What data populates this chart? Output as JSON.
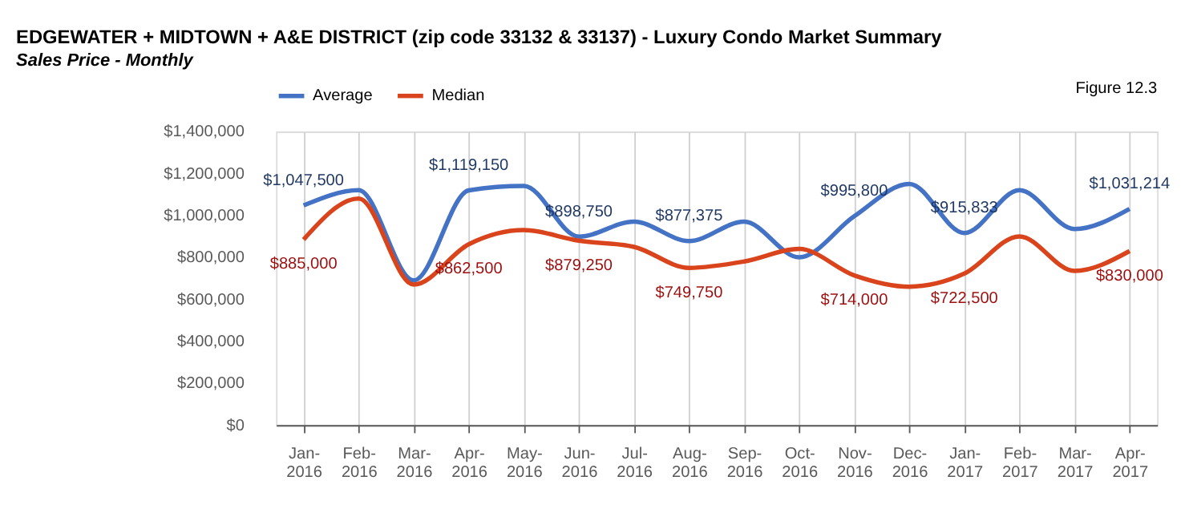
{
  "chart_data": {
    "type": "line",
    "title": "EDGEWATER + MIDTOWN + A&E DISTRICT (zip code 33132 & 33137) - Luxury Condo Market Summary",
    "subtitle": "Sales Price - Monthly",
    "annotations": [
      "Figure 12.3"
    ],
    "categories": [
      "Jan-2016",
      "Feb-2016",
      "Mar-2016",
      "Apr-2016",
      "May-2016",
      "Jun-2016",
      "Jul-2016",
      "Aug-2016",
      "Sep-2016",
      "Oct-2016",
      "Nov-2016",
      "Dec-2016",
      "Jan-2017",
      "Feb-2017",
      "Mar-2017",
      "Apr-2017"
    ],
    "series": [
      {
        "name": "Average",
        "color": "#4472c4",
        "values": [
          1047500,
          1120000,
          690000,
          1119150,
          1140000,
          898750,
          970000,
          877375,
          970000,
          800000,
          995800,
          1150000,
          915833,
          1120000,
          935000,
          1031214
        ],
        "value_labels": [
          "$1,047,500",
          null,
          null,
          "$1,119,150",
          null,
          "$898,750",
          null,
          "$877,375",
          null,
          null,
          "$995,800",
          null,
          "$915,833",
          null,
          null,
          "$1,031,214"
        ]
      },
      {
        "name": "Median",
        "color": "#d9441c",
        "values": [
          885000,
          1080000,
          670000,
          862500,
          930000,
          879250,
          850000,
          749750,
          780000,
          840000,
          714000,
          660000,
          722500,
          900000,
          735000,
          830000
        ],
        "value_labels": [
          "$885,000",
          null,
          null,
          "$862,500",
          null,
          "$879,250",
          null,
          "$749,750",
          null,
          null,
          "$714,000",
          null,
          "$722,500",
          null,
          null,
          "$830,000"
        ]
      }
    ],
    "ylim": [
      0,
      1400000
    ],
    "yticks": [
      {
        "value": 0,
        "label": "$0"
      },
      {
        "value": 200000,
        "label": "$200,000"
      },
      {
        "value": 400000,
        "label": "$400,000"
      },
      {
        "value": 600000,
        "label": "$600,000"
      },
      {
        "value": 800000,
        "label": "$800,000"
      },
      {
        "value": 1000000,
        "label": "$1,000,000"
      },
      {
        "value": 1200000,
        "label": "$1,200,000"
      },
      {
        "value": 1400000,
        "label": "$1,400,000"
      }
    ],
    "grid": "x",
    "legend": "top",
    "marker": "none",
    "line_style": "solid"
  }
}
